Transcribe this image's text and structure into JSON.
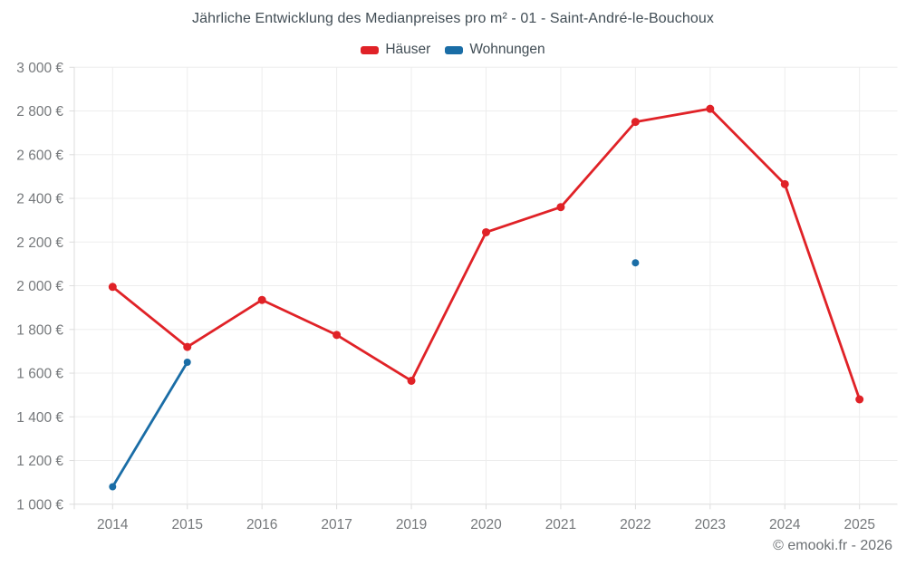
{
  "footer": {
    "credit": "© emooki.fr - 2026"
  },
  "chart_data": {
    "type": "line",
    "title": "Jährliche Entwicklung des Medianpreises pro m² - 01 - Saint-André-le-Bouchoux",
    "categories": [
      "2014",
      "2015",
      "2016",
      "2017",
      "2019",
      "2020",
      "2021",
      "2022",
      "2023",
      "2024",
      "2025"
    ],
    "series": [
      {
        "id": "haeuser",
        "name": "Häuser",
        "color": "#e02227",
        "marker_radius": 4.5,
        "values": [
          1995,
          1720,
          1935,
          1775,
          1565,
          2245,
          2360,
          2750,
          2810,
          2465,
          1480
        ]
      },
      {
        "id": "wohnungen",
        "name": "Wohnungen",
        "color": "#1a6da6",
        "marker_radius": 4,
        "values": [
          1080,
          1650,
          null,
          null,
          null,
          null,
          null,
          2105,
          null,
          null,
          null
        ]
      }
    ],
    "ylim": [
      1000,
      3000
    ],
    "ytick_step": 200,
    "yaxis_format": "{value} €",
    "grid": true,
    "legend_position": "top"
  }
}
